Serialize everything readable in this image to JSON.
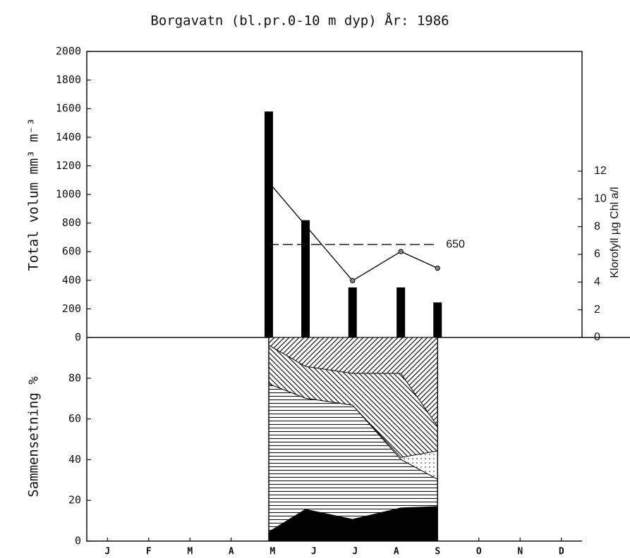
{
  "chart_data": [
    {
      "type": "bar",
      "title": "Borgavatn (bl.pr.0-10 m dyp)   År: 1986",
      "ylabel": "Total volum mm³ m⁻³",
      "y2label": "Klorofyll µg Chl a/l",
      "x": [
        4.41,
        5.3,
        6.44,
        7.61,
        8.5
      ],
      "xlim": [
        0,
        12
      ],
      "series": [
        {
          "type": "bar",
          "color": "#000000",
          "values": [
            1580,
            820,
            350,
            350,
            245
          ]
        },
        {
          "type": "line",
          "axis": "y2",
          "color": "#000000",
          "values": [
            11.2,
            null,
            4.1,
            6.2,
            5.0
          ]
        }
      ],
      "ylim": [
        0,
        2000
      ],
      "yticks": [
        0,
        200,
        400,
        600,
        800,
        1000,
        1200,
        1400,
        1600,
        1800,
        2000
      ],
      "y2lim": [
        0,
        20.64
      ],
      "y2ticks": [
        0,
        2,
        4,
        6,
        8,
        10,
        12
      ],
      "reference_value": 650
    },
    {
      "type": "area",
      "ylabel": "Sammensetning %",
      "x": [
        4.41,
        5.3,
        6.44,
        7.61,
        8.5
      ],
      "xlim": [
        0,
        12
      ],
      "ylim": [
        0,
        100
      ],
      "yticks": [
        0,
        20,
        40,
        60,
        80
      ],
      "xticks": [
        {
          "value": 0.5,
          "label": "J"
        },
        {
          "value": 1.5,
          "label": "F"
        },
        {
          "value": 2.5,
          "label": "M"
        },
        {
          "value": 3.5,
          "label": "A"
        },
        {
          "value": 4.5,
          "label": "M"
        },
        {
          "value": 5.5,
          "label": "J"
        },
        {
          "value": 6.5,
          "label": "J"
        },
        {
          "value": 7.5,
          "label": "A"
        },
        {
          "value": 8.5,
          "label": "S"
        },
        {
          "value": 9.5,
          "label": "O"
        },
        {
          "value": 10.5,
          "label": "N"
        },
        {
          "value": 11.5,
          "label": "D"
        }
      ],
      "series": [
        {
          "fill": "solid",
          "values": [
            4.5,
            15.6,
            10.7,
            16.3,
            17
          ]
        },
        {
          "fill": "horizontal",
          "values": [
            72.7,
            54.6,
            56.1,
            23.8,
            13.4
          ]
        },
        {
          "fill": "dots",
          "values": [
            0,
            0,
            0,
            1,
            13.9
          ]
        },
        {
          "fill": "backslash",
          "values": [
            19,
            15.6,
            15.6,
            41.3,
            12.1
          ]
        },
        {
          "fill": "slash",
          "values": [
            3.8,
            14.2,
            17.6,
            17.6,
            43.6
          ]
        }
      ]
    }
  ]
}
